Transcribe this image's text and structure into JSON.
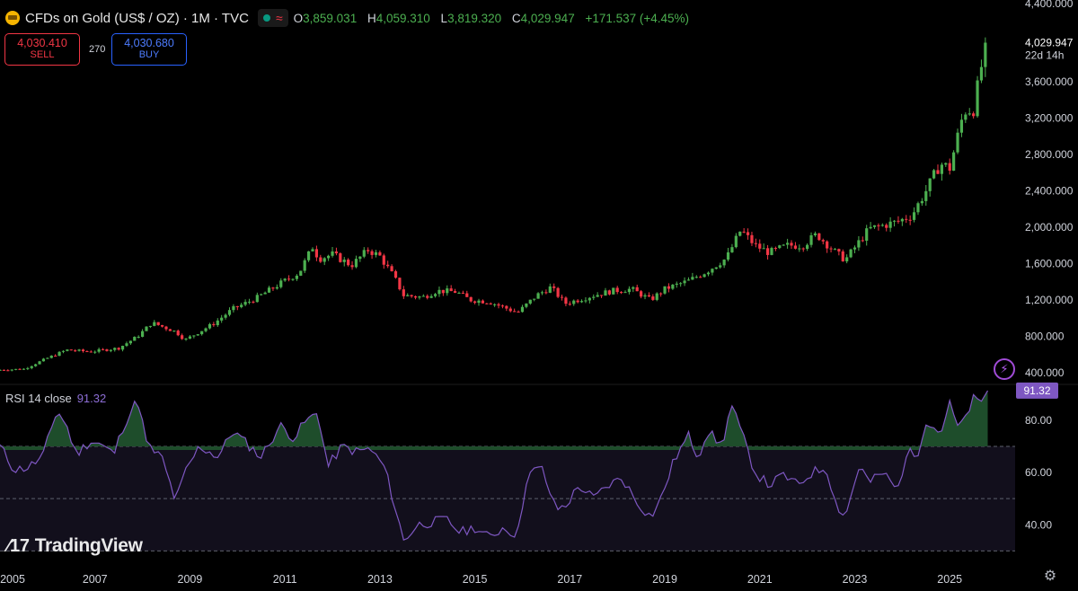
{
  "header": {
    "symbol": "CFDs on Gold (US$ / OZ) · 1M · TVC",
    "open_label": "O",
    "open": "3,859.031",
    "high_label": "H",
    "high": "4,059.310",
    "low_label": "L",
    "low": "3,819.320",
    "close_label": "C",
    "close": "4,029.947",
    "change": "+171.537 (+4.45%)"
  },
  "trade": {
    "sell_price": "4,030.410",
    "sell_label": "SELL",
    "spread": "270",
    "buy_price": "4,030.680",
    "buy_label": "BUY"
  },
  "price_axis": {
    "last_price": "4,029.947",
    "countdown": "22d 14h",
    "top_label": "4,400.000"
  },
  "rsi": {
    "title": "RSI 14 close",
    "value": "91.32",
    "badge": "91.32"
  },
  "branding": {
    "name": "TradingView"
  },
  "colors": {
    "up": "#4caf50",
    "down": "#f23645",
    "rsi_line": "#7e57c2",
    "rsi_band": "#120f1c",
    "overbought_fill": "#1e4d2b",
    "badge": "#7e57c2"
  },
  "icons": {
    "logo": "gold-coin-icon",
    "alert": "lightning-icon",
    "settings": "gear-icon"
  },
  "chart_data": [
    {
      "type": "candlestick",
      "title": "CFDs on Gold (US$ / OZ) · 1M · TVC",
      "x_tick_labels": [
        "2005",
        "2007",
        "2009",
        "2011",
        "2013",
        "2015",
        "2017",
        "2019",
        "2021",
        "2023",
        "2025"
      ],
      "y_tick_labels": [
        "400.000",
        "800.000",
        "1,200.000",
        "1,600.000",
        "2,000.000",
        "2,400.000",
        "2,800.000",
        "3,200.000",
        "3,600.000",
        "4,029.947"
      ],
      "ylim": [
        300,
        4450
      ],
      "xlim": [
        2005.0,
        2026.15
      ],
      "series": [
        {
          "name": "",
          "x": [
            2005.0,
            2005.5,
            2006.0,
            2006.4,
            2006.9,
            2007.5,
            2007.9,
            2008.2,
            2008.7,
            2008.9,
            2009.5,
            2009.9,
            2010.4,
            2010.9,
            2011.3,
            2011.6,
            2011.7,
            2012.0,
            2012.4,
            2012.75,
            2013.0,
            2013.3,
            2013.5,
            2013.9,
            2014.2,
            2014.6,
            2014.9,
            2015.3,
            2015.9,
            2016.3,
            2016.6,
            2016.9,
            2017.5,
            2017.9,
            2018.3,
            2018.7,
            2019.0,
            2019.5,
            2019.9,
            2020.3,
            2020.6,
            2020.9,
            2021.2,
            2021.6,
            2021.9,
            2022.2,
            2022.6,
            2022.8,
            2023.3,
            2023.9,
            2024.2,
            2024.5,
            2024.8,
            2025.0,
            2025.3,
            2025.5,
            2025.7,
            2025.8
          ],
          "close": [
            430,
            440,
            560,
            650,
            630,
            670,
            800,
            950,
            850,
            760,
            940,
            1100,
            1220,
            1380,
            1500,
            1800,
            1650,
            1700,
            1580,
            1750,
            1680,
            1450,
            1250,
            1230,
            1300,
            1290,
            1200,
            1180,
            1060,
            1250,
            1340,
            1160,
            1250,
            1300,
            1320,
            1200,
            1320,
            1410,
            1520,
            1660,
            1970,
            1800,
            1720,
            1800,
            1800,
            1920,
            1720,
            1640,
            1980,
            2060,
            2130,
            2400,
            2700,
            2650,
            3280,
            3300,
            3860,
            4030
          ]
        }
      ]
    },
    {
      "type": "line",
      "title": "RSI 14 close",
      "y_tick_labels": [
        "40.00",
        "60.00",
        "80.00"
      ],
      "ylim": [
        26,
        93
      ],
      "reference_lines": [
        30,
        50,
        70
      ],
      "last_value": 91.32,
      "series": [
        {
          "name": "RSI 14 close",
          "x": [
            2005.0,
            2005.3,
            2005.6,
            2005.9,
            2006.2,
            2006.4,
            2006.6,
            2006.9,
            2007.1,
            2007.4,
            2007.6,
            2007.9,
            2008.1,
            2008.4,
            2008.7,
            2008.9,
            2009.2,
            2009.6,
            2009.9,
            2010.2,
            2010.5,
            2010.9,
            2011.2,
            2011.4,
            2011.7,
            2011.9,
            2012.2,
            2012.5,
            2012.8,
            2013.1,
            2013.3,
            2013.5,
            2013.8,
            2014.1,
            2014.4,
            2014.7,
            2015.0,
            2015.3,
            2015.6,
            2015.9,
            2016.1,
            2016.4,
            2016.7,
            2016.9,
            2017.2,
            2017.5,
            2017.8,
            2018.1,
            2018.4,
            2018.7,
            2018.9,
            2019.2,
            2019.5,
            2019.7,
            2019.9,
            2020.2,
            2020.4,
            2020.6,
            2020.9,
            2021.2,
            2021.5,
            2021.8,
            2022.1,
            2022.4,
            2022.6,
            2022.8,
            2023.1,
            2023.3,
            2023.6,
            2023.9,
            2024.1,
            2024.3,
            2024.5,
            2024.8,
            2025.0,
            2025.2,
            2025.5,
            2025.7,
            2025.8
          ],
          "values": [
            70,
            61,
            62,
            66,
            84,
            78,
            67,
            72,
            71,
            67,
            78,
            88,
            70,
            66,
            49,
            60,
            70,
            66,
            76,
            71,
            66,
            78,
            73,
            79,
            83,
            62,
            70,
            68,
            69,
            62,
            48,
            34,
            40,
            41,
            42,
            37,
            39,
            35,
            39,
            36,
            59,
            62,
            46,
            47,
            55,
            50,
            55,
            58,
            49,
            43,
            49,
            65,
            74,
            66,
            76,
            70,
            86,
            76,
            60,
            55,
            59,
            55,
            60,
            62,
            48,
            43,
            63,
            56,
            60,
            53,
            68,
            66,
            80,
            75,
            86,
            76,
            88,
            86,
            91.32
          ]
        }
      ]
    }
  ]
}
